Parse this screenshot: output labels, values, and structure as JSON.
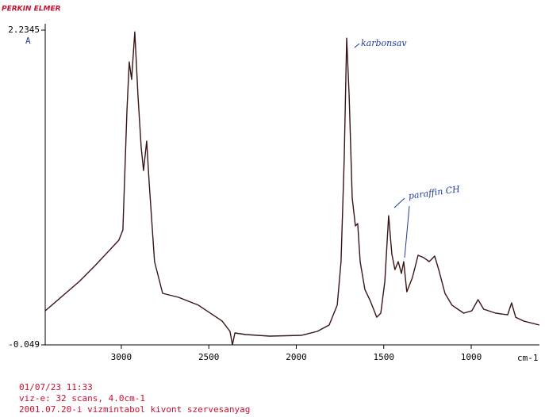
{
  "header": {
    "brand": "PERKIN ELMER"
  },
  "chart_data": {
    "type": "line",
    "y_label": "A",
    "x_label": "cm-1",
    "x": [
      3435,
      3240,
      3150,
      3014,
      2991,
      2968,
      2955,
      2941,
      2923,
      2905,
      2887,
      2873,
      2855,
      2841,
      2810,
      2764,
      2673,
      2560,
      2424,
      2379,
      2365,
      2351,
      2288,
      2152,
      1971,
      1880,
      1812,
      1766,
      1744,
      1726,
      1712,
      1698,
      1680,
      1662,
      1649,
      1635,
      1608,
      1576,
      1540,
      1517,
      1494,
      1472,
      1454,
      1436,
      1417,
      1399,
      1386,
      1368,
      1336,
      1304,
      1272,
      1240,
      1209,
      1186,
      1150,
      1110,
      1043,
      997,
      961,
      929,
      860,
      792,
      769,
      746,
      701,
      610
    ],
    "values": [
      0.198,
      0.411,
      0.526,
      0.71,
      0.785,
      1.647,
      2.004,
      1.877,
      2.222,
      1.762,
      1.389,
      1.216,
      1.429,
      1.13,
      0.555,
      0.325,
      0.296,
      0.239,
      0.124,
      0.049,
      -0.049,
      0.037,
      0.026,
      0.014,
      0.02,
      0.049,
      0.095,
      0.239,
      0.555,
      1.302,
      2.176,
      1.762,
      1.015,
      0.814,
      0.831,
      0.555,
      0.354,
      0.267,
      0.152,
      0.181,
      0.411,
      0.888,
      0.612,
      0.497,
      0.555,
      0.469,
      0.555,
      0.336,
      0.44,
      0.601,
      0.584,
      0.555,
      0.595,
      0.497,
      0.325,
      0.239,
      0.181,
      0.198,
      0.279,
      0.21,
      0.181,
      0.169,
      0.256,
      0.152,
      0.124,
      0.095
    ],
    "color": "#3a1414",
    "xlim": [
      3435,
      610
    ],
    "ylim": [
      -0.049,
      2.2345
    ],
    "xticks": [
      3000,
      2500,
      2000,
      1500,
      1000
    ],
    "yticks": [
      -0.049,
      2.2345
    ],
    "annotations": [
      "karbonsav",
      "paraffin CH"
    ]
  },
  "footer": {
    "lines": [
      "01/07/23 11:33",
      "viz-e: 32 scans, 4.0cm-1",
      "2001.07.20-i vizmintabol kivont szervesanyag"
    ]
  }
}
